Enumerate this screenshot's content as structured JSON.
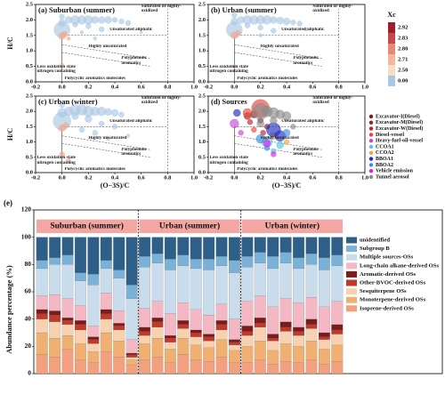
{
  "chart_data": [
    {
      "type": "scatter",
      "title": "(a) Suburban (summer)",
      "y_label": "H/C",
      "xlim": [
        -0.2,
        1.0
      ],
      "xticks": [
        -0.2,
        {
          "value": 0,
          "label": "0.0"
        },
        0.2,
        0.4,
        0.6,
        0.8,
        {
          "value": 1,
          "label": "1.0"
        }
      ],
      "ylim": [
        0,
        2.5
      ],
      "yticks": [
        {
          "value": 0,
          "label": "0.0"
        },
        0.5,
        {
          "value": 1,
          "label": "1.0"
        },
        1.5,
        {
          "value": 2,
          "label": "2.0"
        },
        2.5
      ],
      "annotations": [
        "Saturated or highly-oxidized",
        "Unsaturated aliphatic",
        "Highly unsaturated",
        "Polyphenolic aromatics",
        "Less oxidation state nitrogen containing",
        "Polycyclic aromatics molecules"
      ],
      "series": [
        {
          "color": "#a9c8e4",
          "x": [
            0,
            0,
            0.05,
            0.1,
            0.15,
            0.2,
            0.25,
            0.3,
            0.35,
            0.4,
            0.45,
            0.5,
            0.1,
            0.2,
            0.3,
            0.15,
            0,
            0.6,
            0.25
          ],
          "values": [
            1.68,
            1.9,
            2.0,
            2.0,
            2.0,
            2.0,
            2.0,
            2.0,
            2.0,
            2.0,
            1.95,
            1.9,
            1.85,
            1.8,
            1.7,
            1.6,
            2.1,
            1.6,
            1.4
          ],
          "sizes": [
            9,
            4,
            4,
            5,
            5,
            5,
            4,
            4,
            4,
            3,
            3,
            3,
            3,
            3,
            3,
            2,
            3,
            1.5,
            2
          ]
        },
        {
          "color": "#f2a98a",
          "x": [
            0,
            0.02,
            0,
            0.05
          ],
          "values": [
            1.48,
            1.55,
            0.55,
            1.4
          ],
          "sizes": [
            4,
            3,
            2,
            2
          ]
        }
      ]
    },
    {
      "type": "scatter",
      "title": "(b) Urban (summer)",
      "xlim": [
        -0.2,
        1.0
      ],
      "xticks": [
        -0.2,
        {
          "value": 0,
          "label": "0.0"
        },
        0.2,
        0.4,
        0.6,
        0.8,
        {
          "value": 1,
          "label": "1.0"
        }
      ],
      "ylim": [
        0,
        2.5
      ],
      "yticks": [
        {
          "value": 0,
          "label": "0.0"
        },
        0.5,
        {
          "value": 1,
          "label": "1.0"
        },
        1.5,
        {
          "value": 2,
          "label": "2.0"
        },
        2.5
      ],
      "annotations": [
        "Saturated or highly-oxidized",
        "Unsaturated aliphatic",
        "Highly unsaturated",
        "Polyphenolic aromatics",
        "Less oxidation state nitrogen containing",
        "Polycyclic aromatics molecules"
      ],
      "colorbar": {
        "title": "Xc",
        "ticks": [
          2.92,
          2.83,
          {
            "value": 2.8,
            "label": "2.80"
          },
          2.71,
          {
            "value": 2.5,
            "label": "2.50"
          },
          {
            "value": 0,
            "label": "0.00"
          }
        ],
        "colors": [
          "#9e1f2b",
          "#c9484c",
          "#e58a78",
          "#f2b79c",
          "#f8dcc6",
          "#a9c8e4"
        ]
      },
      "series": [
        {
          "color": "#a9c8e4",
          "x": [
            0,
            0,
            0.05,
            0.1,
            0.15,
            0.2,
            0.25,
            0.3,
            0.35,
            0.4,
            0.45,
            0.5,
            0.1,
            0.2,
            0.3,
            0.2,
            0,
            0.55
          ],
          "values": [
            1.68,
            1.95,
            2.0,
            2.0,
            2.0,
            2.0,
            2.0,
            2.0,
            1.98,
            1.95,
            1.92,
            1.88,
            1.82,
            1.75,
            1.65,
            1.5,
            2.15,
            1.7
          ],
          "sizes": [
            9,
            4,
            4,
            5,
            5,
            5,
            5,
            4,
            4,
            4,
            3,
            3,
            3,
            3,
            3,
            2,
            3,
            2
          ]
        },
        {
          "color": "#f2a98a",
          "x": [
            0,
            0.03,
            0
          ],
          "values": [
            1.5,
            1.58,
            0.5
          ],
          "sizes": [
            4,
            3,
            2
          ]
        }
      ]
    },
    {
      "type": "scatter",
      "title": "(c) Urban (winter)",
      "x_label": "(O−3S)/C",
      "y_label": "H/C",
      "xlim": [
        -0.2,
        1.0
      ],
      "xticks": [
        -0.2,
        {
          "value": 0,
          "label": "0.0"
        },
        0.2,
        0.4,
        0.6,
        0.8,
        {
          "value": 1,
          "label": "1.0"
        }
      ],
      "ylim": [
        0,
        2.5
      ],
      "yticks": [
        {
          "value": 0,
          "label": "0.0"
        },
        0.5,
        {
          "value": 1,
          "label": "1.0"
        },
        1.5,
        {
          "value": 2,
          "label": "2.0"
        },
        2.5
      ],
      "annotations": [
        "Saturated or highly-oxidized",
        "Unsaturated aliphatic",
        "Highly unsaturated",
        "Polyphenolic aromatics",
        "Less oxidation state nitrogen containing",
        "Polycyclic aromatics molecules"
      ],
      "series": [
        {
          "color": "#a9c8e4",
          "x": [
            0,
            0,
            0.05,
            0.1,
            0.15,
            0.2,
            0.25,
            0.3,
            0.35,
            0.4,
            0.45,
            0.1,
            0.2,
            0.3,
            0.4,
            0.15,
            0.25,
            0.35,
            0,
            0.5
          ],
          "values": [
            1.68,
            1.95,
            2.0,
            2.05,
            2.05,
            2.0,
            2.0,
            2.0,
            1.98,
            1.95,
            1.9,
            1.85,
            1.75,
            1.6,
            1.5,
            1.4,
            1.3,
            1.1,
            2.2,
            1.2
          ],
          "sizes": [
            10,
            5,
            5,
            6,
            6,
            6,
            5,
            5,
            4,
            4,
            3,
            4,
            4,
            3,
            3,
            3,
            3,
            2,
            3,
            2
          ]
        },
        {
          "color": "#f2a98a",
          "x": [
            0,
            0.03,
            0,
            0.05
          ],
          "values": [
            1.45,
            1.55,
            0.6,
            0.4
          ],
          "sizes": [
            4,
            3,
            3,
            2
          ]
        }
      ]
    },
    {
      "type": "scatter",
      "title": "(d) Sources",
      "x_label": "(O−3S)/C",
      "xlim": [
        -0.2,
        1.0
      ],
      "xticks": [
        -0.2,
        {
          "value": 0,
          "label": "0.0"
        },
        0.2,
        0.4,
        0.6,
        0.8,
        {
          "value": 1,
          "label": "1.0"
        }
      ],
      "ylim": [
        0,
        2.5
      ],
      "yticks": [
        {
          "value": 0,
          "label": "0.0"
        },
        0.5,
        {
          "value": 1,
          "label": "1.0"
        },
        1.5,
        {
          "value": 2,
          "label": "2.0"
        },
        2.5
      ],
      "annotations": [
        "Saturated or highly-oxidized",
        "Unsaturated aliphatic",
        "Highly unsaturated",
        "Polyphenolic aromatics",
        "Less oxidation state nitrogen containing",
        "Polycyclic aromatics molecules"
      ],
      "series": [
        {
          "name": "Excavator-I(Diesel)",
          "color": "#7a1a1a",
          "x": [
            0.15,
            0.2
          ],
          "values": [
            1.9,
            1.7
          ],
          "sizes": [
            4,
            3
          ]
        },
        {
          "name": "Excavator-M(Diesel)",
          "color": "#a11d1d",
          "x": [
            0.1,
            0.25
          ],
          "values": [
            1.85,
            1.5
          ],
          "sizes": [
            4,
            3
          ]
        },
        {
          "name": "Excavator-W(Diesel)",
          "color": "#c42222",
          "x": [
            0.12,
            0.22
          ],
          "values": [
            1.65,
            1.3
          ],
          "sizes": [
            3,
            3
          ]
        },
        {
          "name": "Diesel-vessel",
          "color": "#e8463c",
          "x": [
            0.2,
            0.1,
            0.15
          ],
          "values": [
            2.1,
            1.95,
            1.4
          ],
          "sizes": [
            10,
            5,
            3
          ]
        },
        {
          "name": "Heavy-fuel-oil-vessel",
          "color": "#c44bd0",
          "x": [
            0,
            0.05
          ],
          "values": [
            1.6,
            1.3
          ],
          "sizes": [
            5,
            3
          ]
        },
        {
          "name": "CCOA1",
          "color": "#4ec6e6",
          "x": [
            0.25,
            0.35,
            0.3
          ],
          "values": [
            1.0,
            0.9,
            0.7
          ],
          "sizes": [
            6,
            4,
            3
          ]
        },
        {
          "name": "CCOA2",
          "color": "#f0a43a",
          "x": [
            0.3,
            0.4
          ],
          "values": [
            1.2,
            1.0
          ],
          "sizes": [
            4,
            3
          ]
        },
        {
          "name": "BBOA1",
          "color": "#1e2fc0",
          "x": [
            0.3,
            0.35,
            0.02
          ],
          "values": [
            1.4,
            1.2,
            1.95
          ],
          "sizes": [
            8,
            6,
            4
          ]
        },
        {
          "name": "BBOA2",
          "color": "#3a8fe0",
          "x": [
            0.2,
            0.4,
            0.25
          ],
          "values": [
            1.1,
            1.3,
            0.8
          ],
          "sizes": [
            5,
            4,
            3
          ]
        },
        {
          "name": "Vehicle emission",
          "color": "#e21ee2",
          "x": [
            0.25,
            0.3
          ],
          "values": [
            0.95,
            0.6
          ],
          "sizes": [
            4,
            3
          ]
        },
        {
          "name": "Tunnel aerosol",
          "color": "#8c8c8c",
          "x": [
            0.2,
            0.25,
            0.3,
            0.35,
            0.4,
            0.3,
            0.2,
            0.45
          ],
          "values": [
            2.0,
            2.0,
            1.95,
            1.9,
            1.85,
            1.7,
            1.6,
            1.5
          ],
          "sizes": [
            9,
            6,
            6,
            5,
            5,
            4,
            4,
            3
          ]
        }
      ]
    },
    {
      "type": "stacked_bar",
      "title": "(e)",
      "y_label": "Abundance percentage (%)",
      "groups": [
        "Suburban (summer)",
        "Urban (summer)",
        "Urban (winter)"
      ],
      "categories": [
        null,
        null,
        null,
        null,
        null,
        null,
        null,
        null,
        null,
        null,
        null,
        null,
        null,
        null,
        null,
        null,
        null,
        null,
        null,
        null,
        null,
        null,
        null,
        null
      ],
      "ylim": [
        0,
        120
      ],
      "yticks": [
        0,
        20,
        40,
        60,
        80,
        100,
        120
      ],
      "series": [
        {
          "name": "Isoprene-derived OSs",
          "color": "#f3a07f",
          "values": [
            14,
            12,
            18,
            10,
            8,
            16,
            12,
            6,
            10,
            12,
            8,
            14,
            10,
            9,
            12,
            8,
            8,
            10,
            7,
            9,
            8,
            10,
            7,
            9
          ]
        },
        {
          "name": "Monoterpene-derived OSs",
          "color": "#f0b072",
          "values": [
            16,
            14,
            10,
            12,
            8,
            14,
            12,
            4,
            12,
            14,
            10,
            12,
            11,
            10,
            13,
            9,
            12,
            14,
            10,
            13,
            12,
            14,
            11,
            12
          ]
        },
        {
          "name": "Sesquiterpene OSs",
          "color": "#f8d2b0",
          "values": [
            10,
            12,
            8,
            10,
            6,
            10,
            8,
            2,
            6,
            8,
            5,
            7,
            6,
            5,
            7,
            4,
            8,
            10,
            7,
            9,
            8,
            9,
            7,
            8
          ]
        },
        {
          "name": "Other-BVOC-derived OSs",
          "color": "#c0392b",
          "values": [
            4,
            5,
            3,
            4,
            3,
            4,
            3,
            2,
            3,
            4,
            3,
            3,
            3,
            3,
            4,
            2,
            3,
            3,
            2,
            3,
            3,
            3,
            2,
            3
          ]
        },
        {
          "name": "Aromatic-derived OSs",
          "color": "#7b1c1c",
          "values": [
            3,
            3,
            2,
            3,
            2,
            3,
            2,
            1,
            3,
            3,
            2,
            3,
            2,
            2,
            3,
            2,
            4,
            4,
            3,
            4,
            3,
            4,
            3,
            4
          ]
        },
        {
          "name": "Long-chain alkane-derived OSs",
          "color": "#f3b8c4",
          "values": [
            10,
            12,
            14,
            11,
            8,
            12,
            9,
            10,
            14,
            12,
            16,
            13,
            15,
            14,
            12,
            15,
            18,
            16,
            20,
            17,
            18,
            16,
            19,
            17
          ]
        },
        {
          "name": "Multiple sources-OSs",
          "color": "#c9dcec",
          "values": [
            20,
            22,
            25,
            18,
            30,
            18,
            24,
            30,
            30,
            28,
            32,
            27,
            30,
            33,
            28,
            34,
            25,
            24,
            28,
            26,
            25,
            24,
            27,
            26
          ]
        },
        {
          "name": "Subgroup B",
          "color": "#79b2d6",
          "values": [
            6,
            5,
            7,
            6,
            8,
            6,
            6,
            10,
            8,
            7,
            8,
            8,
            7,
            8,
            7,
            9,
            8,
            8,
            9,
            8,
            8,
            8,
            9,
            8
          ]
        },
        {
          "name": "unidentified",
          "color": "#2e5f88",
          "values": [
            17,
            15,
            13,
            26,
            27,
            17,
            24,
            35,
            14,
            12,
            16,
            13,
            16,
            16,
            14,
            17,
            14,
            11,
            14,
            11,
            15,
            12,
            15,
            13
          ]
        }
      ]
    }
  ]
}
